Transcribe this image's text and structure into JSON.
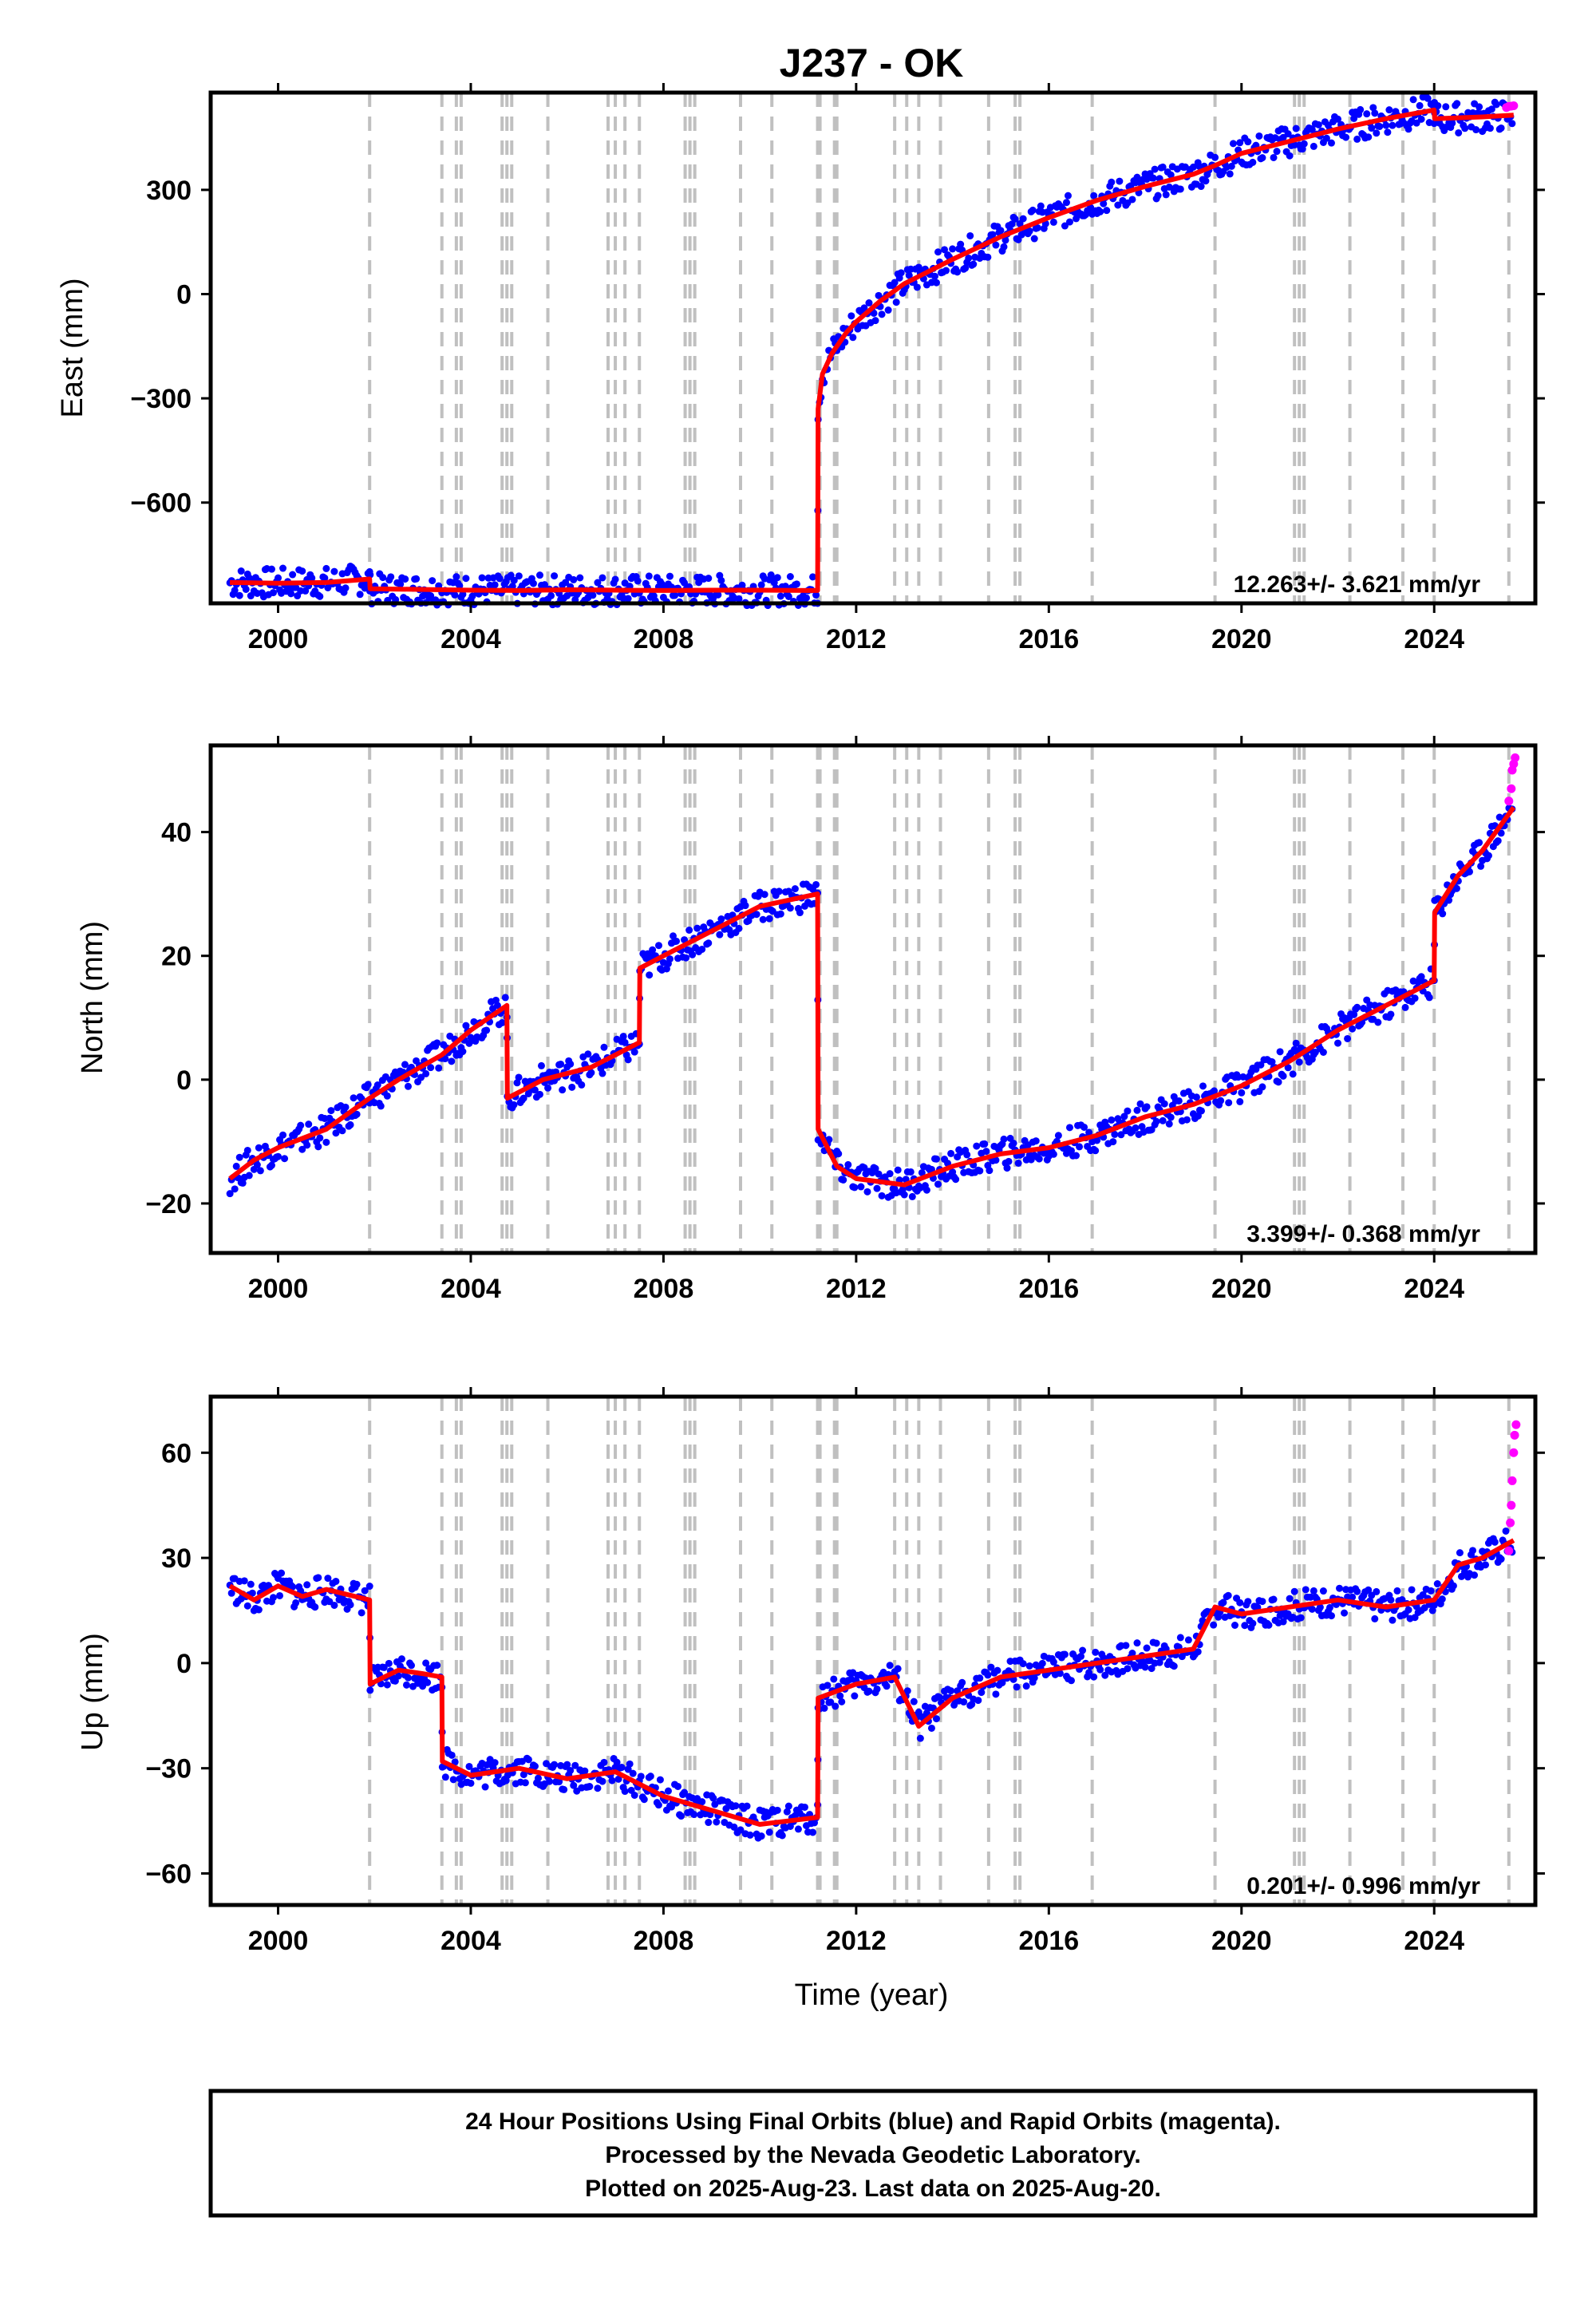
{
  "chart_data": {
    "type": "scatter",
    "title": "J237 - OK",
    "xlabel": "Time (year)",
    "xlim": [
      1998.6,
      2026.1
    ],
    "x_ticks": [
      2000,
      2004,
      2008,
      2012,
      2016,
      2020,
      2024
    ],
    "x_tick_labels": [
      "2000",
      "2004",
      "2008",
      "2012",
      "2016",
      "2020",
      "2024"
    ],
    "colors": {
      "final": "#0000ff",
      "rapid": "#ff00ff",
      "model": "#ff0000",
      "event_lines": "#c0c0c0"
    },
    "event_lines": [
      2001.9,
      2003.4,
      2003.7,
      2003.8,
      2004.65,
      2004.75,
      2004.85,
      2005.6,
      2006.85,
      2007.0,
      2007.2,
      2007.5,
      2008.45,
      2008.55,
      2008.65,
      2009.6,
      2010.25,
      2011.2,
      2011.25,
      2011.55,
      2011.6,
      2012.8,
      2013.05,
      2013.3,
      2013.75,
      2014.75,
      2015.3,
      2015.4,
      2016.9,
      2019.45,
      2021.1,
      2021.2,
      2021.3,
      2022.25,
      2023.35,
      2024.0,
      2025.55
    ],
    "panels": [
      {
        "ylabel": "East (mm)",
        "ylim": [
          -890,
          580
        ],
        "y_ticks": [
          -600,
          -300,
          0,
          300
        ],
        "y_tick_labels": [
          "−600",
          "−300",
          "0",
          "300"
        ],
        "rate": "12.263+/- 3.621 mm/yr",
        "model": {
          "x": [
            1999.0,
            2000.0,
            2001.0,
            2001.9,
            2001.91,
            2003.0,
            2004.0,
            2005.0,
            2006.0,
            2007.0,
            2008.0,
            2009.0,
            2010.0,
            2011.0,
            2011.2,
            2011.21,
            2011.3,
            2011.5,
            2011.8,
            2012.0,
            2012.5,
            2013.0,
            2014.0,
            2015.0,
            2016.0,
            2017.0,
            2018.0,
            2019.0,
            2019.45,
            2020.0,
            2021.0,
            2022.0,
            2023.0,
            2024.0,
            2024.01,
            2025.0,
            2025.65
          ],
          "y": [
            -830,
            -832,
            -830,
            -820,
            -848,
            -850,
            -852,
            -853,
            -851,
            -852,
            -853,
            -852,
            -852,
            -853,
            -853,
            -330,
            -230,
            -170,
            -110,
            -80,
            -20,
            30,
            100,
            165,
            220,
            270,
            310,
            345,
            370,
            405,
            440,
            475,
            505,
            530,
            505,
            510,
            515
          ]
        },
        "rapid": {
          "x": [
            2025.5,
            2025.55,
            2025.6,
            2025.65
          ],
          "y": [
            537,
            540,
            541,
            542
          ]
        }
      },
      {
        "ylabel": "North (mm)",
        "ylim": [
          -28,
          54
        ],
        "y_ticks": [
          -20,
          0,
          20,
          40
        ],
        "y_tick_labels": [
          "−20",
          "0",
          "20",
          "40"
        ],
        "rate": "3.399+/- 0.368 mm/yr",
        "model": {
          "x": [
            1999.0,
            1999.5,
            2000.0,
            2001.0,
            2001.9,
            2002.5,
            2003.4,
            2004.0,
            2004.75,
            2004.76,
            2005.5,
            2006.5,
            2007.5,
            2007.51,
            2008.0,
            2009.0,
            2010.0,
            2011.2,
            2011.21,
            2011.6,
            2012.0,
            2013.0,
            2014.0,
            2015.0,
            2016.0,
            2017.0,
            2018.0,
            2019.0,
            2020.0,
            2021.0,
            2022.0,
            2023.0,
            2024.0,
            2024.01,
            2024.5,
            2025.0,
            2025.65
          ],
          "y": [
            -16,
            -13,
            -11,
            -8,
            -3,
            0,
            4,
            8,
            12,
            -3,
            0,
            2,
            6,
            18,
            20,
            24,
            28,
            30,
            -8,
            -14,
            -16,
            -17,
            -14,
            -12,
            -11,
            -9,
            -6,
            -4,
            -1,
            3,
            8,
            12,
            16,
            27,
            33,
            37,
            44
          ]
        },
        "rapid": {
          "x": [
            2025.55,
            2025.6,
            2025.62,
            2025.65,
            2025.68
          ],
          "y": [
            45,
            47,
            50,
            51,
            52
          ]
        }
      },
      {
        "ylabel": "Up (mm)",
        "ylim": [
          -69,
          76
        ],
        "y_ticks": [
          -60,
          -30,
          0,
          30,
          60
        ],
        "y_tick_labels": [
          "−60",
          "−30",
          "0",
          "30",
          "60"
        ],
        "rate": "0.201+/- 0.996 mm/yr",
        "model": {
          "x": [
            1999.0,
            1999.5,
            2000.0,
            2000.5,
            2001.0,
            2001.9,
            2001.91,
            2002.2,
            2002.5,
            2003.0,
            2003.4,
            2003.41,
            2004.0,
            2005.0,
            2006.0,
            2007.0,
            2008.0,
            2009.0,
            2010.0,
            2011.2,
            2011.21,
            2011.6,
            2012.0,
            2012.8,
            2013.3,
            2014.0,
            2015.0,
            2016.0,
            2017.0,
            2018.0,
            2019.0,
            2019.45,
            2020.0,
            2021.0,
            2022.0,
            2023.0,
            2024.0,
            2024.5,
            2025.0,
            2025.65
          ],
          "y": [
            22,
            18,
            22,
            19,
            21,
            18,
            -6,
            -4,
            -2,
            -3,
            -4,
            -28,
            -32,
            -30,
            -33,
            -31,
            -38,
            -42,
            -46,
            -44,
            -10,
            -8,
            -6,
            -4,
            -18,
            -10,
            -4,
            -2,
            0,
            2,
            4,
            16,
            14,
            16,
            18,
            16,
            18,
            28,
            30,
            35
          ]
        },
        "rapid": {
          "x": [
            2025.55,
            2025.58,
            2025.6,
            2025.62,
            2025.65,
            2025.67,
            2025.7
          ],
          "y": [
            32,
            40,
            45,
            52,
            60,
            65,
            68
          ]
        }
      }
    ]
  },
  "footer": {
    "line1": "24 Hour Positions Using Final Orbits (blue) and Rapid Orbits (magenta).",
    "line2": "Processed by the Nevada Geodetic Laboratory.",
    "line3": "Plotted on 2025-Aug-23. Last data on 2025-Aug-20."
  }
}
